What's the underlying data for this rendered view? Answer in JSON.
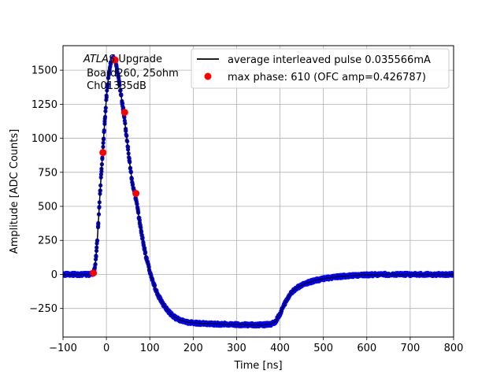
{
  "chart_data": {
    "type": "scatter",
    "title": "",
    "xlabel": "Time [ns]",
    "ylabel": "Amplitude [ADC Counts]",
    "xlim": [
      -100,
      800
    ],
    "ylim": [
      -460,
      1680
    ],
    "xticks": [
      -100,
      0,
      100,
      200,
      300,
      400,
      500,
      600,
      700,
      800
    ],
    "yticks": [
      -250,
      0,
      250,
      500,
      750,
      1000,
      1250,
      1500
    ],
    "grid": true,
    "legend_position": "top-right",
    "annotation": {
      "line1_italic": "ATLAS",
      "line1_rest": " Upgrade",
      "line2": " Board260, 25ohm",
      "line3": " Ch01335dB"
    },
    "series": [
      {
        "name": "average interleaved pulse 0.035566mA",
        "kind": "line",
        "color": "#000000",
        "x": [
          -100,
          -40,
          -30,
          -25,
          -20,
          -15,
          -10,
          -5,
          0,
          5,
          10,
          15,
          20,
          25,
          30,
          35,
          40,
          45,
          50,
          55,
          60,
          65,
          70,
          75,
          80,
          90,
          100,
          110,
          120,
          130,
          140,
          150,
          160,
          170,
          180,
          190,
          200,
          220,
          240,
          260,
          280,
          300,
          320,
          340,
          360,
          380,
          390,
          400,
          410,
          420,
          430,
          440,
          450,
          460,
          470,
          480,
          490,
          500,
          520,
          540,
          560,
          580,
          600,
          620,
          640,
          660,
          680,
          700,
          750,
          800
        ],
        "y": [
          0,
          0,
          10,
          80,
          300,
          580,
          830,
          1070,
          1300,
          1460,
          1555,
          1590,
          1580,
          1500,
          1400,
          1290,
          1190,
          1050,
          920,
          780,
          670,
          600,
          520,
          420,
          320,
          150,
          20,
          -80,
          -160,
          -215,
          -260,
          -295,
          -320,
          -335,
          -345,
          -352,
          -355,
          -360,
          -363,
          -365,
          -367,
          -368,
          -369,
          -370,
          -370,
          -365,
          -345,
          -290,
          -220,
          -160,
          -120,
          -95,
          -80,
          -65,
          -55,
          -45,
          -38,
          -32,
          -22,
          -15,
          -10,
          -6,
          -3,
          -1,
          0,
          0,
          0,
          0,
          0,
          0
        ]
      },
      {
        "name": "",
        "kind": "scatter-band",
        "color": "#0000ff",
        "noise": 12
      },
      {
        "name": "max phase: 610 (OFC amp=0.426787)",
        "kind": "scatter",
        "color": "#ff0000",
        "x": [
          -30,
          -8,
          20,
          42,
          68
        ],
        "y": [
          10,
          895,
          1575,
          1190,
          595
        ]
      }
    ]
  }
}
